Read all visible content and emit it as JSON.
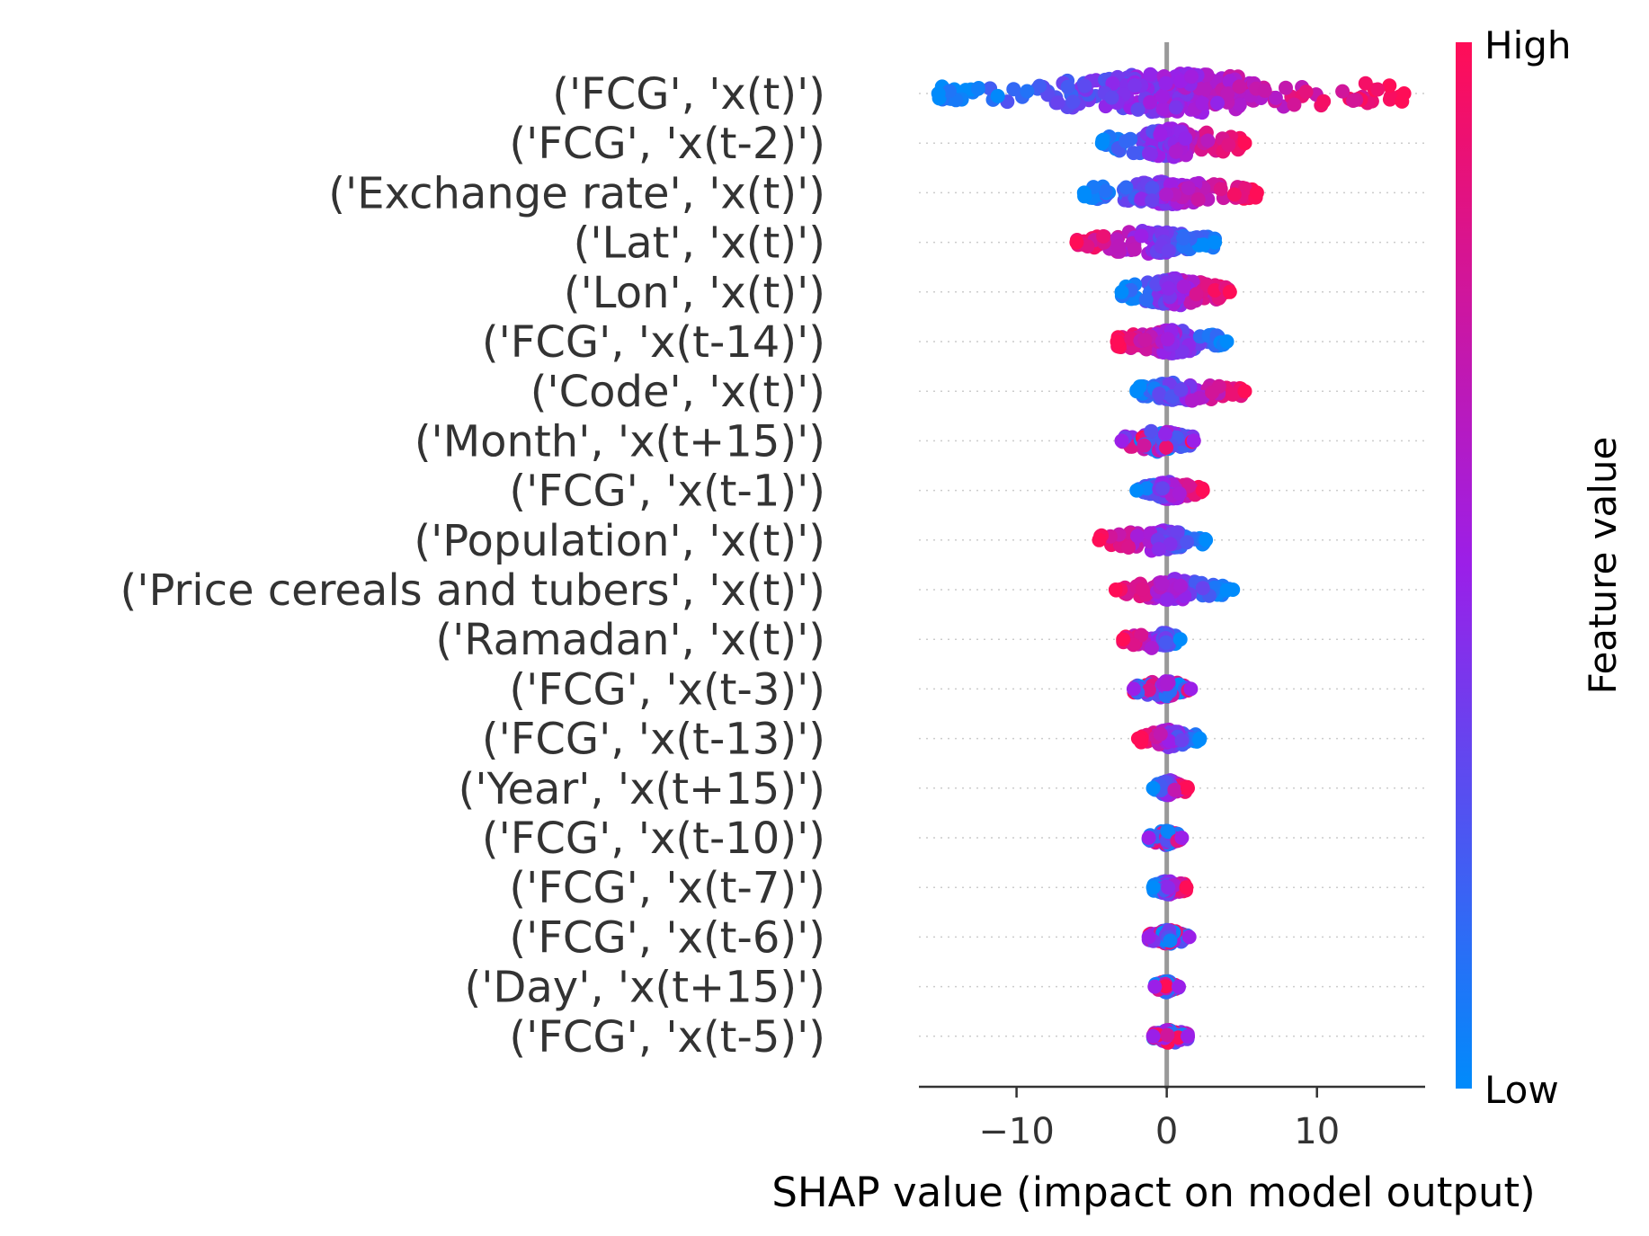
{
  "chart_data": {
    "type": "scatter",
    "subtype": "shap-beeswarm",
    "title": "",
    "xlabel": "SHAP value (impact on model output)",
    "xlim": [
      -16.5,
      17.2
    ],
    "xticks": [
      -10,
      0,
      10
    ],
    "xtick_labels": [
      "−10",
      "0",
      "10"
    ],
    "zero_line": 0,
    "grid": "horizontal-dotted",
    "features": [
      {
        "label": "('FCG', 'x(t)')",
        "min": -15.2,
        "max": 15.8,
        "spread": 0.42,
        "trend": "high-positive"
      },
      {
        "label": "('FCG', 'x(t-2)')",
        "min": -4.3,
        "max": 5.2,
        "spread": 0.3,
        "trend": "high-positive"
      },
      {
        "label": "('Exchange rate', 'x(t)')",
        "min": -5.5,
        "max": 6.0,
        "spread": 0.25,
        "trend": "high-positive"
      },
      {
        "label": "('Lat', 'x(t)')",
        "min": -6.0,
        "max": 3.2,
        "spread": 0.25,
        "trend": "high-negative"
      },
      {
        "label": "('Lon', 'x(t)')",
        "min": -3.0,
        "max": 4.2,
        "spread": 0.28,
        "trend": "high-positive"
      },
      {
        "label": "('FCG', 'x(t-14)')",
        "min": -3.3,
        "max": 4.0,
        "spread": 0.25,
        "trend": "high-negative"
      },
      {
        "label": "('Code', 'x(t)')",
        "min": -2.0,
        "max": 5.2,
        "spread": 0.22,
        "trend": "high-positive"
      },
      {
        "label": "('Month', 'x(t+15)')",
        "min": -3.0,
        "max": 1.8,
        "spread": 0.22,
        "trend": "mixed"
      },
      {
        "label": "('FCG', 'x(t-1)')",
        "min": -2.0,
        "max": 2.4,
        "spread": 0.18,
        "trend": "high-positive"
      },
      {
        "label": "('Population', 'x(t)')",
        "min": -4.5,
        "max": 2.6,
        "spread": 0.22,
        "trend": "high-negative"
      },
      {
        "label": "('Price cereals and tubers', 'x(t)')",
        "min": -3.4,
        "max": 4.4,
        "spread": 0.22,
        "trend": "high-negative"
      },
      {
        "label": "('Ramadan', 'x(t)')",
        "min": -2.9,
        "max": 0.9,
        "spread": 0.18,
        "trend": "high-negative"
      },
      {
        "label": "('FCG', 'x(t-3)')",
        "min": -2.2,
        "max": 1.6,
        "spread": 0.18,
        "trend": "mixed"
      },
      {
        "label": "('FCG', 'x(t-13)')",
        "min": -1.9,
        "max": 2.2,
        "spread": 0.18,
        "trend": "high-negative"
      },
      {
        "label": "('Year', 'x(t+15)')",
        "min": -0.9,
        "max": 1.4,
        "spread": 0.16,
        "trend": "high-positive"
      },
      {
        "label": "('FCG', 'x(t-10)')",
        "min": -1.2,
        "max": 1.0,
        "spread": 0.15,
        "trend": "mixed"
      },
      {
        "label": "('FCG', 'x(t-7)')",
        "min": -0.9,
        "max": 1.3,
        "spread": 0.15,
        "trend": "high-positive"
      },
      {
        "label": "('FCG', 'x(t-6)')",
        "min": -1.2,
        "max": 1.5,
        "spread": 0.15,
        "trend": "mixed"
      },
      {
        "label": "('Day', 'x(t+15)')",
        "min": -0.8,
        "max": 0.8,
        "spread": 0.12,
        "trend": "mixed"
      },
      {
        "label": "('FCG', 'x(t-5)')",
        "min": -0.9,
        "max": 1.4,
        "spread": 0.15,
        "trend": "mixed"
      }
    ],
    "colorbar": {
      "title": "Feature value",
      "high_label": "High",
      "low_label": "Low",
      "high_color": "#ff0d57",
      "mid_color": "#9b1fe8",
      "low_color": "#008bfb"
    }
  }
}
